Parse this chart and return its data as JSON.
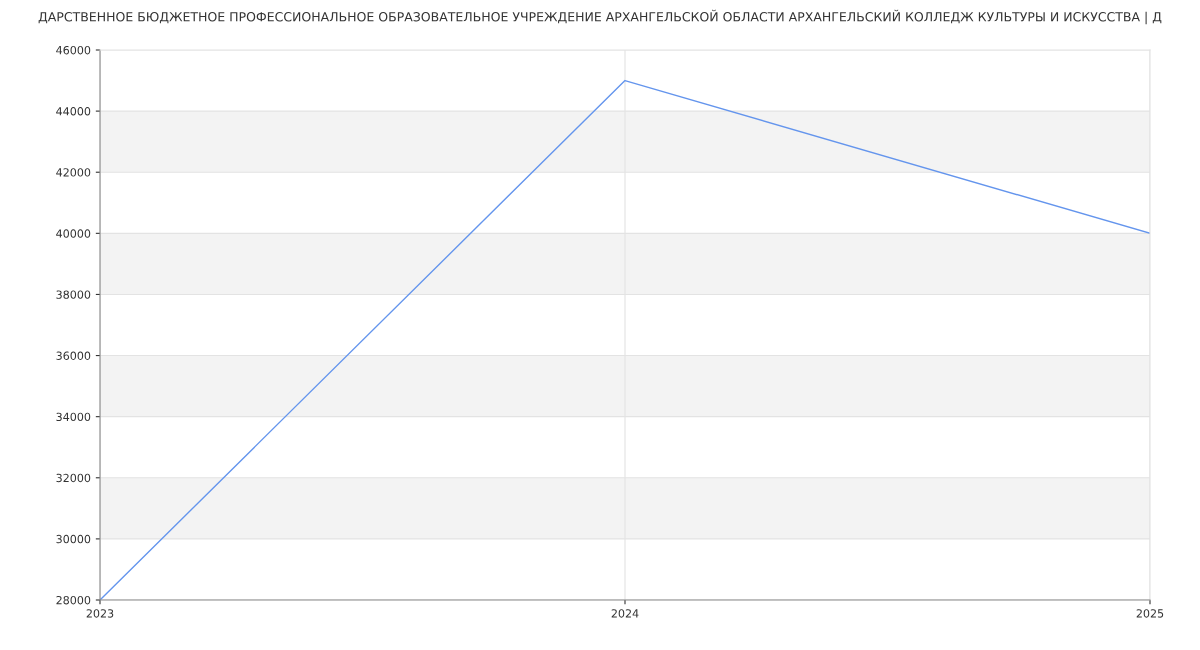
{
  "chart_data": {
    "type": "line",
    "title": "ДАРСТВЕННОЕ БЮДЖЕТНОЕ ПРОФЕССИОНАЛЬНОЕ ОБРАЗОВАТЕЛЬНОЕ УЧРЕЖДЕНИЕ АРХАНГЕЛЬСКОЙ ОБЛАСТИ АРХАНГЕЛЬСКИЙ КОЛЛЕДЖ КУЛЬТУРЫ И ИСКУССТВА | Д",
    "x": [
      "2023",
      "2024",
      "2025"
    ],
    "series": [
      {
        "color": "#6495ed",
        "values": [
          28000,
          45000,
          40000
        ]
      }
    ],
    "xlim": [
      "2023",
      "2025"
    ],
    "xticks": [
      "2023",
      "2024",
      "2025"
    ],
    "ylim": [
      28000,
      46000
    ],
    "yticks": [
      28000,
      30000,
      32000,
      34000,
      36000,
      38000,
      40000,
      42000,
      44000,
      46000
    ],
    "grid": true,
    "marker": "none",
    "line_style": "solid"
  }
}
